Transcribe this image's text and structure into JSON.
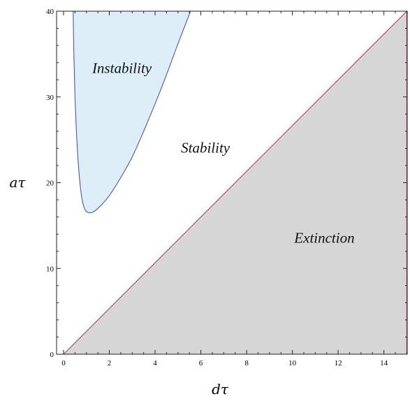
{
  "chart_data": {
    "type": "area",
    "xlabel": "dτ",
    "ylabel": "aτ",
    "xlim": [
      0,
      15
    ],
    "ylim": [
      0,
      40
    ],
    "x_ticks": [
      "0",
      "2",
      "4",
      "6",
      "8",
      "10",
      "12",
      "14"
    ],
    "y_ticks": [
      "0",
      "10",
      "20",
      "30",
      "40"
    ],
    "grid": false,
    "regions": [
      {
        "label": "Instability",
        "fill": "#ddeef8",
        "stroke": "#4a5aa8",
        "boundary": [
          {
            "x": 0.42,
            "y": 40
          },
          {
            "x": 0.45,
            "y": 35
          },
          {
            "x": 0.5,
            "y": 30
          },
          {
            "x": 0.58,
            "y": 25
          },
          {
            "x": 0.68,
            "y": 21
          },
          {
            "x": 0.8,
            "y": 18.2
          },
          {
            "x": 0.95,
            "y": 16.8
          },
          {
            "x": 1.2,
            "y": 16.5
          },
          {
            "x": 1.5,
            "y": 17
          },
          {
            "x": 2.0,
            "y": 18.5
          },
          {
            "x": 2.5,
            "y": 20.6
          },
          {
            "x": 3.0,
            "y": 23
          },
          {
            "x": 3.5,
            "y": 26
          },
          {
            "x": 4.0,
            "y": 29.2
          },
          {
            "x": 4.5,
            "y": 32.6
          },
          {
            "x": 5.0,
            "y": 36.2
          },
          {
            "x": 5.55,
            "y": 40
          }
        ]
      },
      {
        "label": "Stability",
        "fill": "#ffffff",
        "stroke": "none",
        "boundary": []
      },
      {
        "label": "Extinction",
        "fill": "#d6d6d6",
        "stroke": "#b0405a",
        "boundary": [
          {
            "x": 0,
            "y": 0
          },
          {
            "x": 15,
            "y": 40
          },
          {
            "x": 15,
            "y": 0
          }
        ]
      }
    ],
    "region_label_positions": {
      "Instability": {
        "x": 2.55,
        "y": 32.8
      },
      "Stability": {
        "x": 6.2,
        "y": 23.5
      },
      "Extinction": {
        "x": 11.4,
        "y": 13.0
      }
    }
  }
}
